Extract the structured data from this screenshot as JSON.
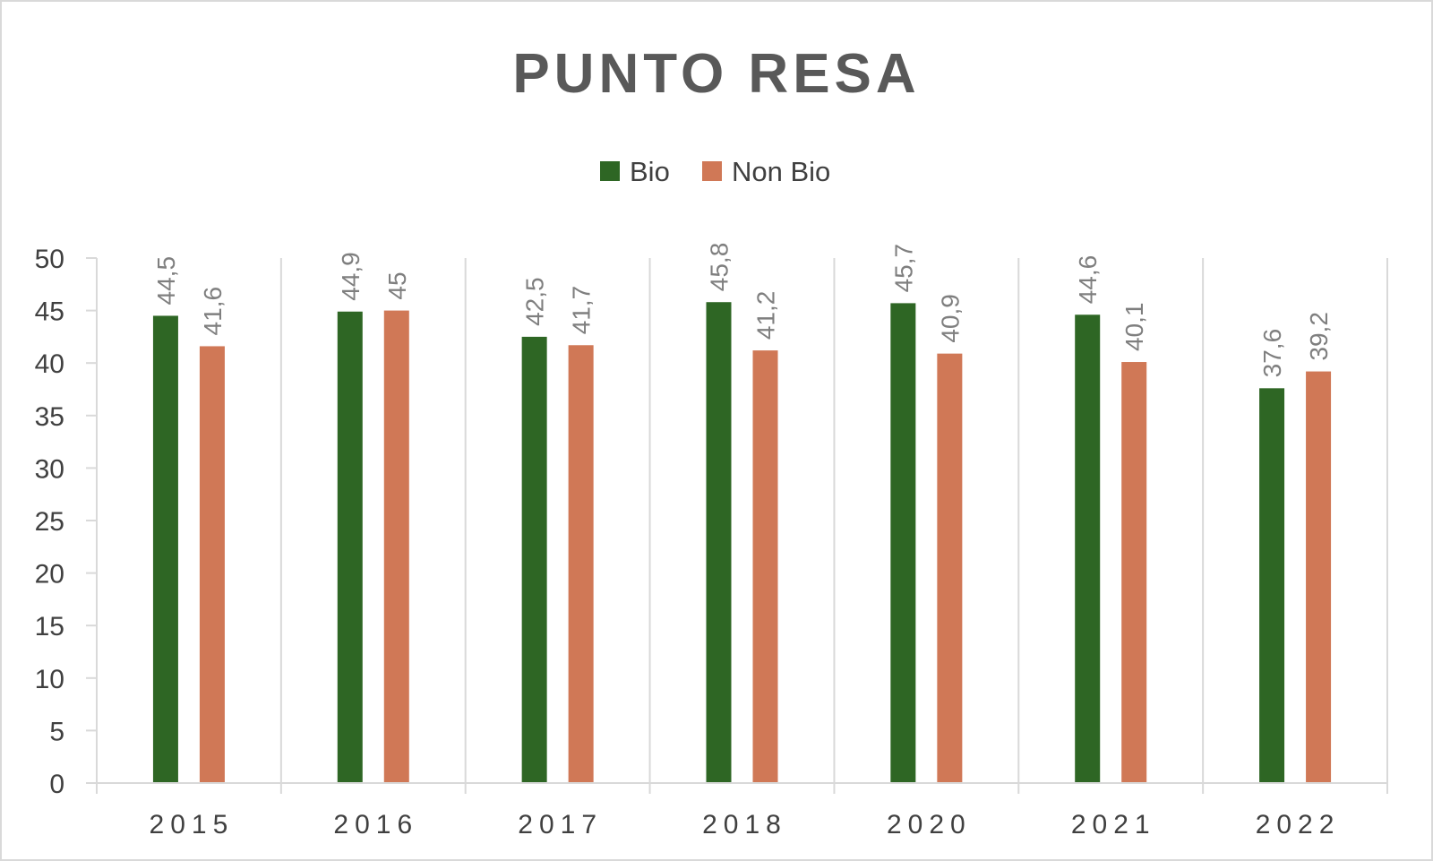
{
  "chart_data": {
    "type": "bar",
    "title": "PUNTO RESA",
    "categories": [
      "2015",
      "2016",
      "2017",
      "2018",
      "2020",
      "2021",
      "2022"
    ],
    "series": [
      {
        "name": "Bio",
        "color": "#2e6624",
        "values": [
          44.5,
          44.9,
          42.5,
          45.8,
          45.7,
          44.6,
          37.6
        ],
        "labels": [
          "44,5",
          "44,9",
          "42,5",
          "45,8",
          "45,7",
          "44,6",
          "37,6"
        ]
      },
      {
        "name": "Non Bio",
        "color": "#d07856",
        "values": [
          41.6,
          45,
          41.7,
          41.2,
          40.9,
          40.1,
          39.2
        ],
        "labels": [
          "41,6",
          "45",
          "41,7",
          "41,2",
          "40,9",
          "40,1",
          "39,2"
        ]
      }
    ],
    "ylim": [
      0,
      50
    ],
    "yticks": [
      0,
      5,
      10,
      15,
      20,
      25,
      30,
      35,
      40,
      45,
      50
    ],
    "xlabel": "",
    "ylabel": "",
    "legend": "top-center",
    "grid": "vertical"
  }
}
